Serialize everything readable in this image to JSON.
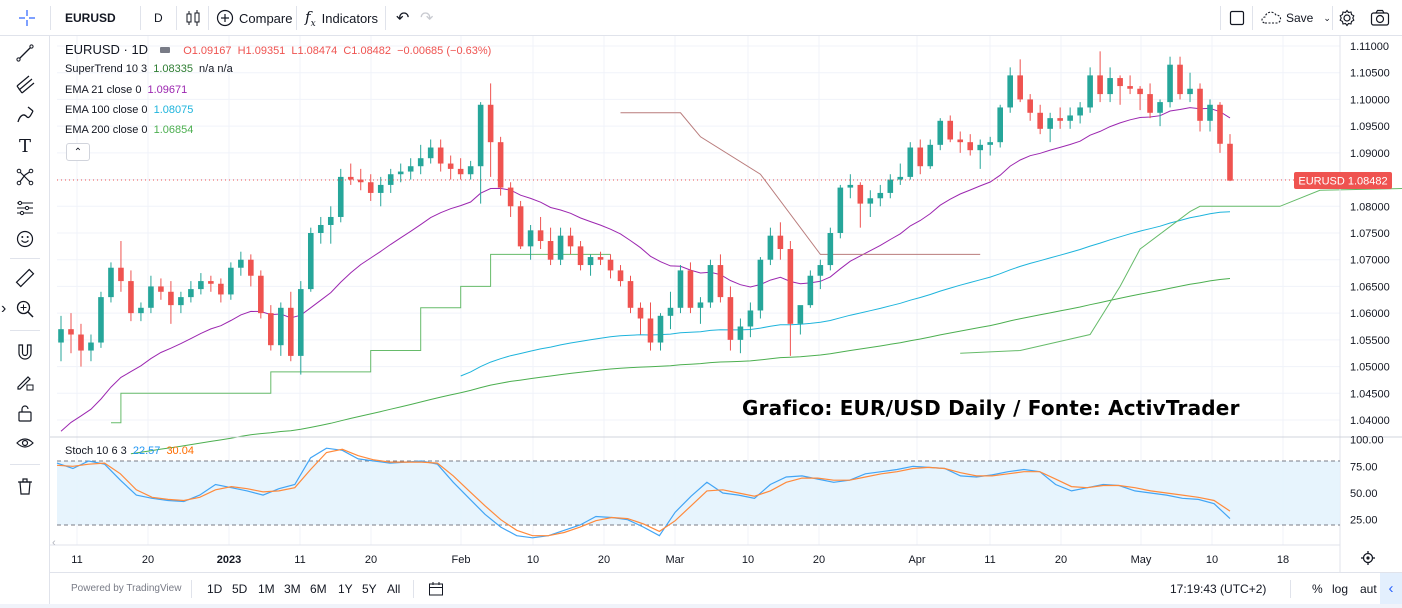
{
  "toolbar": {
    "symbol": "EURUSD",
    "interval": "D",
    "compare_label": "Compare",
    "indicators_label": "Indicators",
    "save_label": "Save"
  },
  "legend": {
    "title": "EURUSD · 1D",
    "ohlc": {
      "o": "O1.09167",
      "h": "H1.09351",
      "l": "L1.08474",
      "c": "C1.08482",
      "chg": "−0.00685 (−0.63%)"
    },
    "supertrend": {
      "label": "SuperTrend 10 3",
      "value": "1.08335",
      "extra": "n/a n/a"
    },
    "ema21": {
      "label": "EMA 21 close 0",
      "value": "1.09671"
    },
    "ema100": {
      "label": "EMA 100 close 0",
      "value": "1.08075"
    },
    "ema200": {
      "label": "EMA 200 close 0",
      "value": "1.06854"
    },
    "stoch": {
      "label": "Stoch 10 6 3",
      "k": "22.57",
      "d": "30.04"
    }
  },
  "price_tag": {
    "symbol": "EURUSD",
    "value": "1.08482"
  },
  "credit": "Grafico: EUR/USD Daily / Fonte: ActivTrader",
  "bottombar": {
    "powered": "Powered by TradingView",
    "ranges": [
      "1D",
      "5D",
      "1M",
      "3M",
      "6M",
      "1Y",
      "5Y",
      "All"
    ],
    "time": "17:19:43 (UTC+2)",
    "pct": "%",
    "log": "log",
    "auto": "aut"
  },
  "colors": {
    "up": "#26a69a",
    "down": "#ef5350",
    "ema21": "#9c27b0",
    "ema100": "#1eb4dc",
    "ema200": "#4caf50",
    "supertrend_up": "#66bb6a",
    "supertrend_down": "#b97c7c",
    "stoch_k": "#42a5f5",
    "stoch_d": "#ff8a3c"
  },
  "chart_data": {
    "type": "candlestick",
    "title": "EURUSD · 1D",
    "ylim": [
      1.037,
      1.112
    ],
    "yticks": [
      "1.11000",
      "1.10500",
      "1.10000",
      "1.09500",
      "1.09000",
      "1.08500",
      "1.08000",
      "1.07500",
      "1.07000",
      "1.06500",
      "1.06000",
      "1.05500",
      "1.05000",
      "1.04500",
      "1.04000"
    ],
    "xticks": [
      "11",
      "20",
      "2023",
      "11",
      "20",
      "Feb",
      "10",
      "20",
      "Mar",
      "10",
      "20",
      "Apr",
      "11",
      "20",
      "May",
      "10",
      "18"
    ],
    "candles": [
      [
        1.0545,
        1.0595,
        1.051,
        1.057
      ],
      [
        1.057,
        1.06,
        1.0525,
        1.056
      ],
      [
        1.056,
        1.058,
        1.05,
        1.053
      ],
      [
        1.053,
        1.056,
        1.051,
        1.0545
      ],
      [
        1.0545,
        1.064,
        1.0535,
        1.063
      ],
      [
        1.063,
        1.0695,
        1.062,
        1.0685
      ],
      [
        1.0685,
        1.0735,
        1.064,
        1.066
      ],
      [
        1.066,
        1.068,
        1.0585,
        1.06
      ],
      [
        1.06,
        1.062,
        1.0585,
        1.061
      ],
      [
        1.061,
        1.067,
        1.06,
        1.065
      ],
      [
        1.065,
        1.0665,
        1.0625,
        1.064
      ],
      [
        1.064,
        1.066,
        1.058,
        1.0615
      ],
      [
        1.0615,
        1.064,
        1.06,
        1.063
      ],
      [
        1.063,
        1.066,
        1.062,
        1.0645
      ],
      [
        1.0645,
        1.0675,
        1.0635,
        1.066
      ],
      [
        1.066,
        1.067,
        1.064,
        1.0655
      ],
      [
        1.0655,
        1.0665,
        1.062,
        1.0635
      ],
      [
        1.0635,
        1.0695,
        1.0625,
        1.0685
      ],
      [
        1.0685,
        1.0715,
        1.067,
        1.07
      ],
      [
        1.07,
        1.071,
        1.065,
        1.067
      ],
      [
        1.067,
        1.068,
        1.059,
        1.06
      ],
      [
        1.06,
        1.0615,
        1.053,
        1.054
      ],
      [
        1.054,
        1.062,
        1.052,
        1.061
      ],
      [
        1.061,
        1.064,
        1.051,
        1.052
      ],
      [
        1.052,
        1.066,
        1.0485,
        1.0645
      ],
      [
        1.0645,
        1.076,
        1.064,
        1.075
      ],
      [
        1.075,
        1.078,
        1.073,
        1.0765
      ],
      [
        1.0765,
        1.08,
        1.073,
        1.078
      ],
      [
        1.078,
        1.087,
        1.077,
        1.0855
      ],
      [
        1.0855,
        1.088,
        1.084,
        1.085
      ],
      [
        1.085,
        1.087,
        1.083,
        1.0845
      ],
      [
        1.0845,
        1.086,
        1.081,
        1.0825
      ],
      [
        1.0825,
        1.0855,
        1.08,
        1.084
      ],
      [
        1.084,
        1.087,
        1.0825,
        1.086
      ],
      [
        1.086,
        1.088,
        1.0845,
        1.0865
      ],
      [
        1.0865,
        1.089,
        1.085,
        1.0875
      ],
      [
        1.0875,
        1.0915,
        1.086,
        1.089
      ],
      [
        1.089,
        1.0925,
        1.088,
        1.091
      ],
      [
        1.091,
        1.0925,
        1.0865,
        1.088
      ],
      [
        1.088,
        1.0895,
        1.085,
        1.087
      ],
      [
        1.087,
        1.089,
        1.085,
        1.086
      ],
      [
        1.086,
        1.0885,
        1.085,
        1.0875
      ],
      [
        1.0875,
        1.0995,
        1.0805,
        1.099
      ],
      [
        1.099,
        1.103,
        1.0855,
        1.092
      ],
      [
        1.092,
        1.093,
        1.082,
        1.0835
      ],
      [
        1.0835,
        1.0845,
        1.078,
        1.08
      ],
      [
        1.08,
        1.081,
        1.072,
        1.0725
      ],
      [
        1.0725,
        1.0765,
        1.07,
        1.0755
      ],
      [
        1.0755,
        1.078,
        1.072,
        1.0735
      ],
      [
        1.0735,
        1.076,
        1.069,
        1.07
      ],
      [
        1.07,
        1.076,
        1.069,
        1.0745
      ],
      [
        1.0745,
        1.076,
        1.071,
        1.0725
      ],
      [
        1.0725,
        1.0735,
        1.068,
        1.069
      ],
      [
        1.069,
        1.071,
        1.067,
        1.0705
      ],
      [
        1.0705,
        1.0715,
        1.069,
        1.07
      ],
      [
        1.07,
        1.071,
        1.0665,
        1.068
      ],
      [
        1.068,
        1.069,
        1.065,
        1.066
      ],
      [
        1.066,
        1.067,
        1.06,
        1.061
      ],
      [
        1.061,
        1.062,
        1.056,
        1.059
      ],
      [
        1.059,
        1.062,
        1.053,
        1.0545
      ],
      [
        1.0545,
        1.06,
        1.053,
        1.0595
      ],
      [
        1.0595,
        1.064,
        1.057,
        1.061
      ],
      [
        1.061,
        1.069,
        1.06,
        1.068
      ],
      [
        1.068,
        1.0695,
        1.06,
        1.061
      ],
      [
        1.061,
        1.063,
        1.058,
        1.062
      ],
      [
        1.062,
        1.07,
        1.061,
        1.069
      ],
      [
        1.069,
        1.071,
        1.062,
        1.063
      ],
      [
        1.063,
        1.065,
        1.053,
        1.055
      ],
      [
        1.055,
        1.059,
        1.0525,
        1.0575
      ],
      [
        1.0575,
        1.062,
        1.0555,
        1.0605
      ],
      [
        1.0605,
        1.0705,
        1.059,
        1.07
      ],
      [
        1.07,
        1.076,
        1.069,
        1.0745
      ],
      [
        1.0745,
        1.077,
        1.07,
        1.072
      ],
      [
        1.072,
        1.0735,
        1.052,
        1.058
      ],
      [
        1.058,
        1.061,
        1.056,
        1.0615
      ],
      [
        1.0615,
        1.068,
        1.061,
        1.067
      ],
      [
        1.067,
        1.07,
        1.0645,
        1.069
      ],
      [
        1.069,
        1.076,
        1.068,
        1.075
      ],
      [
        1.075,
        1.084,
        1.074,
        1.0835
      ],
      [
        1.0835,
        1.086,
        1.0815,
        1.084
      ],
      [
        1.084,
        1.0845,
        1.076,
        1.0805
      ],
      [
        1.0805,
        1.083,
        1.078,
        1.0815
      ],
      [
        1.0815,
        1.084,
        1.08,
        1.0825
      ],
      [
        1.0825,
        1.086,
        1.0815,
        1.085
      ],
      [
        1.085,
        1.088,
        1.084,
        1.0855
      ],
      [
        1.0855,
        1.092,
        1.085,
        1.091
      ],
      [
        1.091,
        1.0925,
        1.086,
        1.0875
      ],
      [
        1.0875,
        1.0925,
        1.087,
        1.0915
      ],
      [
        1.0915,
        1.0965,
        1.0905,
        1.096
      ],
      [
        1.096,
        1.097,
        1.092,
        1.0925
      ],
      [
        1.0925,
        1.094,
        1.09,
        1.092
      ],
      [
        1.092,
        1.0935,
        1.0895,
        1.0905
      ],
      [
        1.0905,
        1.0925,
        1.087,
        1.0915
      ],
      [
        1.0915,
        1.093,
        1.0895,
        1.092
      ],
      [
        1.092,
        1.099,
        1.091,
        1.0985
      ],
      [
        1.0985,
        1.106,
        1.0975,
        1.1045
      ],
      [
        1.1045,
        1.1075,
        1.0995,
        1.1
      ],
      [
        1.1,
        1.101,
        1.096,
        1.0975
      ],
      [
        1.0975,
        1.099,
        1.0935,
        1.0945
      ],
      [
        1.0945,
        1.0975,
        1.092,
        1.0965
      ],
      [
        1.0965,
        1.0985,
        1.0945,
        1.096
      ],
      [
        1.096,
        1.0985,
        1.0945,
        1.097
      ],
      [
        1.097,
        1.0995,
        1.0955,
        1.0985
      ],
      [
        1.0985,
        1.106,
        1.0975,
        1.1045
      ],
      [
        1.1045,
        1.109,
        1.0995,
        1.101
      ],
      [
        1.101,
        1.106,
        1.0995,
        1.104
      ],
      [
        1.104,
        1.1045,
        1.099,
        1.1025
      ],
      [
        1.1025,
        1.1045,
        1.101,
        1.102
      ],
      [
        1.102,
        1.1025,
        1.098,
        1.101
      ],
      [
        1.101,
        1.103,
        1.0965,
        1.0975
      ],
      [
        1.0975,
        1.1,
        1.095,
        1.0995
      ],
      [
        1.0995,
        1.108,
        1.0985,
        1.1065
      ],
      [
        1.1065,
        1.108,
        1.1,
        1.101
      ],
      [
        1.101,
        1.105,
        1.0995,
        1.102
      ],
      [
        1.102,
        1.103,
        1.094,
        1.096
      ],
      [
        1.096,
        1.1,
        1.094,
        1.099
      ],
      [
        1.099,
        1.0995,
        1.09,
        1.0917
      ],
      [
        1.0917,
        1.0935,
        1.0847,
        1.0848
      ]
    ]
  }
}
